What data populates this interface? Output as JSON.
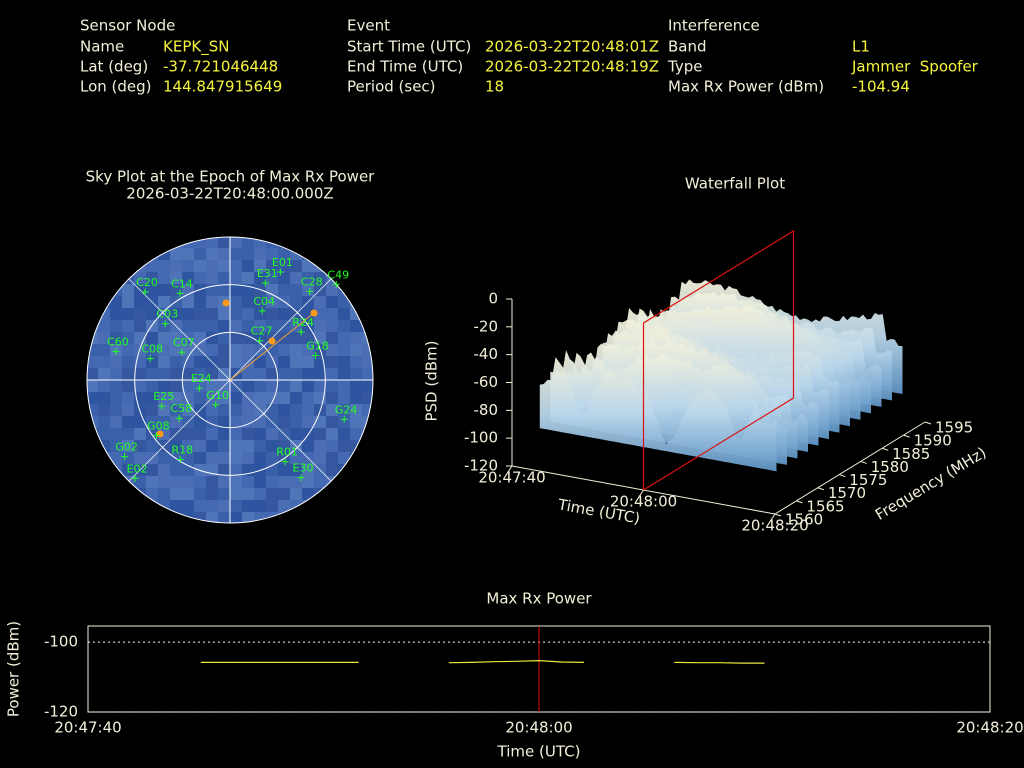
{
  "header": {
    "sections": [
      {
        "title": "Sensor Node",
        "fields": [
          {
            "label": "Name",
            "value": "KEPK_SN"
          },
          {
            "label": "Lat (deg)",
            "value": "-37.721046448"
          },
          {
            "label": "Lon (deg)",
            "value": "144.847915649"
          }
        ]
      },
      {
        "title": "Event",
        "fields": [
          {
            "label": "Start Time (UTC)",
            "value": "2026-03-22T20:48:01Z"
          },
          {
            "label": "End Time (UTC)",
            "value": "2026-03-22T20:48:19Z"
          },
          {
            "label": "Period (sec)",
            "value": "18"
          }
        ]
      },
      {
        "title": "Interference",
        "fields": [
          {
            "label": "Band",
            "value": "L1"
          },
          {
            "label": "Type",
            "value": "Jammer  Spoofer"
          },
          {
            "label": "Max Rx Power (dBm)",
            "value": "-104.94"
          }
        ]
      }
    ]
  },
  "chart_data": [
    {
      "type": "polar",
      "title": "Sky Plot at the Epoch of Max Rx Power",
      "subtitle": "2026-03-22T20:48:00.000Z",
      "color": "#22ff22",
      "rlim": [
        90,
        0
      ],
      "rticks": [
        0,
        30,
        60
      ],
      "satellites": [
        {
          "name": "E01",
          "azimuth": 25,
          "elevation": 15
        },
        {
          "name": "E31",
          "azimuth": 20,
          "elevation": 25
        },
        {
          "name": "C28",
          "azimuth": 42,
          "elevation": 15
        },
        {
          "name": "C49",
          "azimuth": 48,
          "elevation": 0
        },
        {
          "name": "C20",
          "azimuth": 316,
          "elevation": 13
        },
        {
          "name": "C14",
          "azimuth": 330,
          "elevation": 27
        },
        {
          "name": "C04",
          "azimuth": 25,
          "elevation": 42
        },
        {
          "name": "C27",
          "azimuth": 37,
          "elevation": 59
        },
        {
          "name": "R24",
          "azimuth": 56,
          "elevation": 36
        },
        {
          "name": "G18",
          "azimuth": 74,
          "elevation": 34
        },
        {
          "name": "G24",
          "azimuth": 109,
          "elevation": 14
        },
        {
          "name": "C03",
          "azimuth": 311,
          "elevation": 36
        },
        {
          "name": "C08",
          "azimuth": 285,
          "elevation": 38
        },
        {
          "name": "C60",
          "azimuth": 284,
          "elevation": 16
        },
        {
          "name": "C07",
          "azimuth": 300,
          "elevation": 55
        },
        {
          "name": "E24",
          "azimuth": 255,
          "elevation": 70
        },
        {
          "name": "E25",
          "azimuth": 249,
          "elevation": 44
        },
        {
          "name": "C58",
          "azimuth": 233,
          "elevation": 50
        },
        {
          "name": "G10",
          "azimuth": 210,
          "elevation": 72
        },
        {
          "name": "G08",
          "azimuth": 233,
          "elevation": 32
        },
        {
          "name": "R18",
          "azimuth": 212,
          "elevation": 31
        },
        {
          "name": "G02",
          "azimuth": 234,
          "elevation": 8
        },
        {
          "name": "E02",
          "azimuth": 224,
          "elevation": 4
        },
        {
          "name": "R01",
          "azimuth": 146,
          "elevation": 28
        },
        {
          "name": "E30",
          "azimuth": 144,
          "elevation": 14
        }
      ]
    },
    {
      "type": "surface3d",
      "title": "Waterfall Plot",
      "xlabel": "Time (UTC)",
      "ylabel": "Frequency (MHz)",
      "zlabel": "PSD (dBm)",
      "xlim": [
        "20:47:40",
        "20:48:20"
      ],
      "xticks": [
        "20:47:40",
        "20:48:00",
        "20:48:20"
      ],
      "ylim": [
        1560,
        1595
      ],
      "yticks": [
        1560,
        1565,
        1570,
        1575,
        1580,
        1585,
        1590,
        1595
      ],
      "zlim": [
        -120,
        0
      ],
      "zticks": [
        0,
        -20,
        -40,
        -60,
        -80,
        -100,
        -120
      ],
      "marker": "20:48:00",
      "marker_color": "#dd1111"
    },
    {
      "type": "line",
      "title": "Max Rx Power",
      "xlabel": "Time (UTC)",
      "ylabel": "Power (dBm)",
      "xlim": [
        "20:47:40",
        "20:48:20"
      ],
      "xticks": [
        "20:47:40",
        "20:48:00",
        "20:48:20"
      ],
      "ylim": [
        -120,
        -95.4
      ],
      "yticks": [
        -120,
        -100
      ],
      "grid": true,
      "color": "#e8e83a",
      "marker": "20:48:00",
      "marker_color": "#dd1111",
      "x": [
        "20:47:45",
        "20:47:46",
        "20:47:47",
        "20:47:48",
        "20:47:49",
        "20:47:50",
        "20:47:51",
        "20:47:52",
        "20:47:53",
        "20:47:56",
        "20:47:57",
        "20:47:58",
        "20:47:59",
        "20:48:00",
        "20:48:01",
        "20:48:02",
        "20:48:03",
        "20:48:06",
        "20:48:07",
        "20:48:08",
        "20:48:09",
        "20:48:10"
      ],
      "values": [
        -105.8,
        -105.8,
        -105.8,
        -105.8,
        -105.8,
        -105.8,
        -105.8,
        -105.8,
        null,
        -105.9,
        -105.8,
        -105.6,
        -105.5,
        -105.3,
        -105.7,
        -105.8,
        null,
        -105.8,
        -105.9,
        -105.9,
        -106.0,
        -106.0
      ]
    }
  ]
}
